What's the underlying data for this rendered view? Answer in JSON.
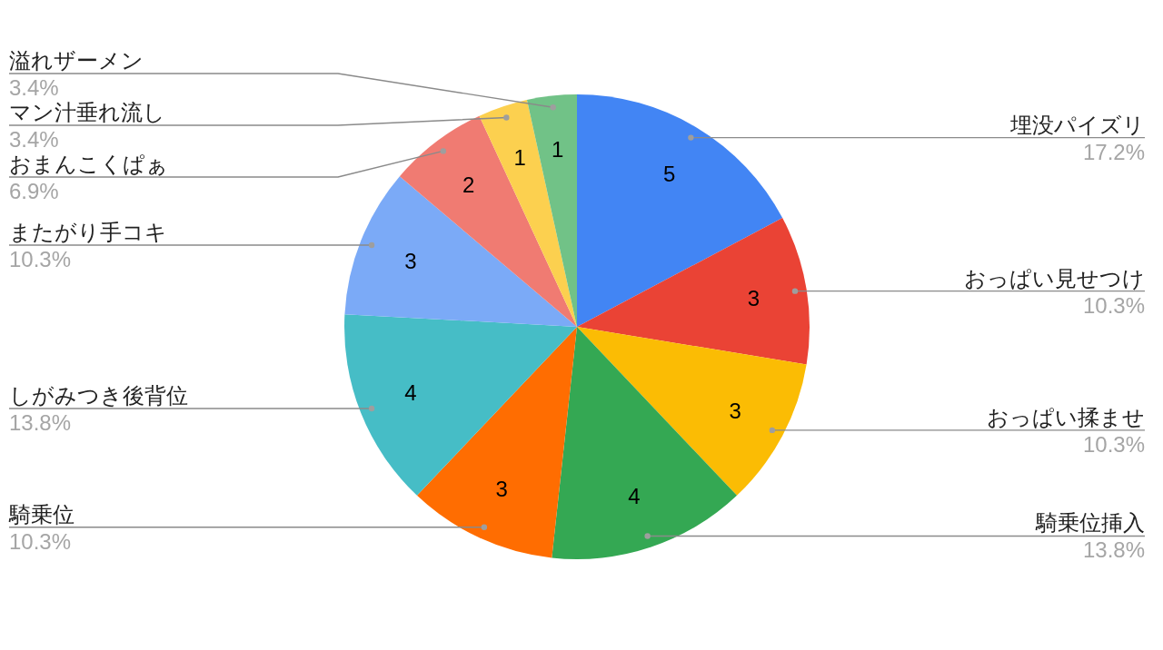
{
  "chart_data": {
    "type": "pie",
    "categories": [
      "埋没パイズリ",
      "おっぱい見せつけ",
      "おっぱい揉ませ",
      "騎乗位挿入",
      "騎乗位",
      "しがみつき後背位",
      "またがり手コキ",
      "おまんこくぱぁ",
      "マン汁垂れ流し",
      "溢れザーメン"
    ],
    "values": [
      5,
      3,
      3,
      4,
      3,
      4,
      3,
      2,
      1,
      1
    ],
    "colors": [
      "#4285f4",
      "#ea4335",
      "#fbbc04",
      "#34a853",
      "#ff6d01",
      "#46bdc6",
      "#7baaf7",
      "#f07b72",
      "#fcd04f",
      "#71c287"
    ],
    "data_labels": true,
    "annotations": [
      "17.2%",
      "10.3%",
      "10.3%",
      "13.8%",
      "10.3%",
      "13.8%",
      "10.3%",
      "6.9%",
      "3.4%",
      "3.4%"
    ]
  }
}
